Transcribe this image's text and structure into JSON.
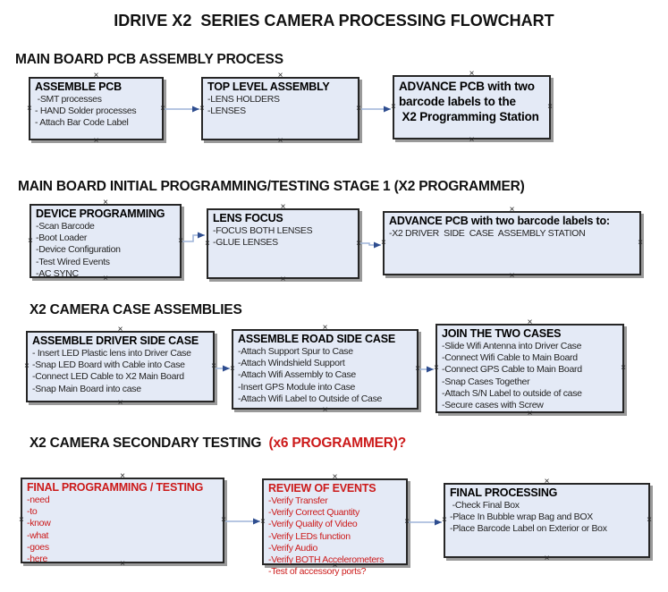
{
  "title": "IDRIVE X2  SERIES CAMERA PROCESSING FLOWCHART",
  "colors": {
    "box_fill": "#e4eaf6",
    "box_border": "#262626",
    "red": "#cc1a1a",
    "arrow_line": "#9db4d8",
    "arrow_head": "#2e4d8f",
    "shadow": "#9a9a9a"
  },
  "sections": [
    {
      "heading": "MAIN BOARD PCB ASSEMBLY PROCESS",
      "boxes": [
        {
          "title": "ASSEMBLE PCB",
          "lines": [
            " -SMT processes",
            "- HAND Solder processes",
            "- Attach Bar Code Label"
          ]
        },
        {
          "title": "TOP LEVEL ASSEMBLY",
          "lines": [
            "-LENS HOLDERS",
            "-LENSES"
          ]
        },
        {
          "title": "",
          "lines": [
            "ADVANCE PCB with two",
            "barcode labels to the",
            " X2 Programming Station"
          ]
        }
      ]
    },
    {
      "heading": "MAIN BOARD INITIAL PROGRAMMING/TESTING STAGE 1 (X2 PROGRAMMER)",
      "boxes": [
        {
          "title": "DEVICE PROGRAMMING",
          "lines": [
            "-Scan Barcode",
            "-Boot Loader",
            "-Device Configuration",
            "-Test Wired Events",
            "-AC SYNC"
          ]
        },
        {
          "title": "LENS FOCUS",
          "lines": [
            "-FOCUS BOTH LENSES",
            "-GLUE LENSES"
          ]
        },
        {
          "title": "ADVANCE PCB with two barcode labels to:",
          "lines": [
            "-X2 DRIVER  SIDE  CASE  ASSEMBLY STATION"
          ]
        }
      ]
    },
    {
      "heading": "X2 CAMERA CASE ASSEMBLIES",
      "boxes": [
        {
          "title": "ASSEMBLE DRIVER SIDE CASE",
          "lines": [
            "- Insert LED Plastic lens into Driver Case",
            "-Snap LED Board with Cable into Case",
            "-Connect LED Cable to X2 Main Board",
            "-Snap Main Board into case"
          ]
        },
        {
          "title": "ASSEMBLE ROAD SIDE CASE",
          "lines": [
            "-Attach Support Spur to Case",
            "-Attach Windshield Support",
            "-Attach Wifi Assembly to Case",
            "-Insert GPS Module into Case",
            "-Attach Wifi Label to Outside of Case"
          ]
        },
        {
          "title": "JOIN THE TWO CASES",
          "lines": [
            "-Slide Wifi Antenna into Driver Case",
            "-Connect Wifi Cable to Main Board",
            "-Connect GPS Cable to Main Board",
            "-Snap Cases Together",
            "-Attach S/N Label to outside of case",
            "-Secure cases with Screw"
          ]
        }
      ]
    },
    {
      "heading": "X2 CAMERA SECONDARY TESTING",
      "heading_red": "  (x6 PROGRAMMER)?",
      "boxes": [
        {
          "title": "FINAL PROGRAMMING / TESTING",
          "lines": [
            "-need",
            "-to",
            "-know",
            "-what",
            "-goes",
            "-here"
          ]
        },
        {
          "title": "REVIEW OF EVENTS",
          "lines": [
            "-Verify Transfer",
            "-Verify Correct Quantity",
            "-Verify Quality of Video",
            "-Verify LEDs function",
            "-Verify Audio",
            "-Verify BOTH Accelerometers",
            "-Test of accessory ports?"
          ]
        },
        {
          "title": "FINAL PROCESSING",
          "lines": [
            " -Check Final Box",
            "-Place In Bubble wrap Bag and BOX",
            "-Place Barcode Label on Exterior or Box"
          ]
        }
      ]
    }
  ]
}
